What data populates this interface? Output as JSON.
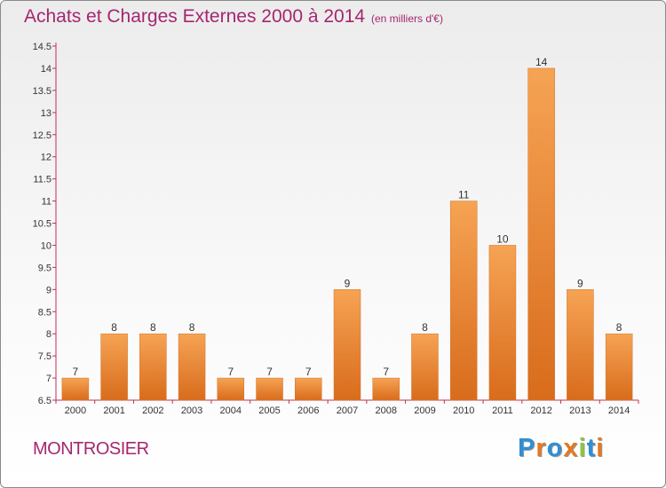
{
  "header": {
    "title": "Achats et Charges Externes 2000 à 2014",
    "subtitle": "(en milliers d'€)"
  },
  "footer": {
    "town": "MONTROSIER",
    "logo_text": "Proxiti",
    "logo_letters": [
      {
        "ch": "P",
        "color": "#2f8fd6"
      },
      {
        "ch": "r",
        "color": "#e6781f"
      },
      {
        "ch": "o",
        "color": "#2f8fd6"
      },
      {
        "ch": "x",
        "color": "#e6781f"
      },
      {
        "ch": "i",
        "color": "#8cc63f"
      },
      {
        "ch": "t",
        "color": "#2f8fd6"
      },
      {
        "ch": "i",
        "color": "#e6781f"
      }
    ]
  },
  "colors": {
    "bar": "#e8802b",
    "title": "#a5266e",
    "axis": "#c22f55"
  },
  "chart_data": {
    "type": "bar",
    "title": "Achats et Charges Externes 2000 à 2014",
    "subtitle": "(en milliers d'€)",
    "xlabel": "",
    "ylabel": "",
    "categories": [
      "2000",
      "2001",
      "2002",
      "2003",
      "2004",
      "2005",
      "2006",
      "2007",
      "2008",
      "2009",
      "2010",
      "2011",
      "2012",
      "2013",
      "2014"
    ],
    "values": [
      7,
      8,
      8,
      8,
      7,
      7,
      7,
      9,
      7,
      8,
      11,
      10,
      14,
      9,
      8
    ],
    "data_labels": [
      "7",
      "8",
      "8",
      "8",
      "7",
      "7",
      "7",
      "9",
      "7",
      "8",
      "11",
      "10",
      "14",
      "9",
      "8"
    ],
    "ylim": [
      6.5,
      14.5
    ],
    "yticks": [
      6.5,
      7,
      7.5,
      8,
      8.5,
      9,
      9.5,
      10,
      10.5,
      11,
      11.5,
      12,
      12.5,
      13,
      13.5,
      14,
      14.5
    ],
    "ytick_labels": [
      "6.5",
      "7",
      "7.5",
      "8",
      "8.5",
      "9",
      "9.5",
      "10",
      "10.5",
      "11",
      "11.5",
      "12",
      "12.5",
      "13",
      "13.5",
      "14",
      "14.5"
    ],
    "grid": false,
    "legend": "none"
  }
}
